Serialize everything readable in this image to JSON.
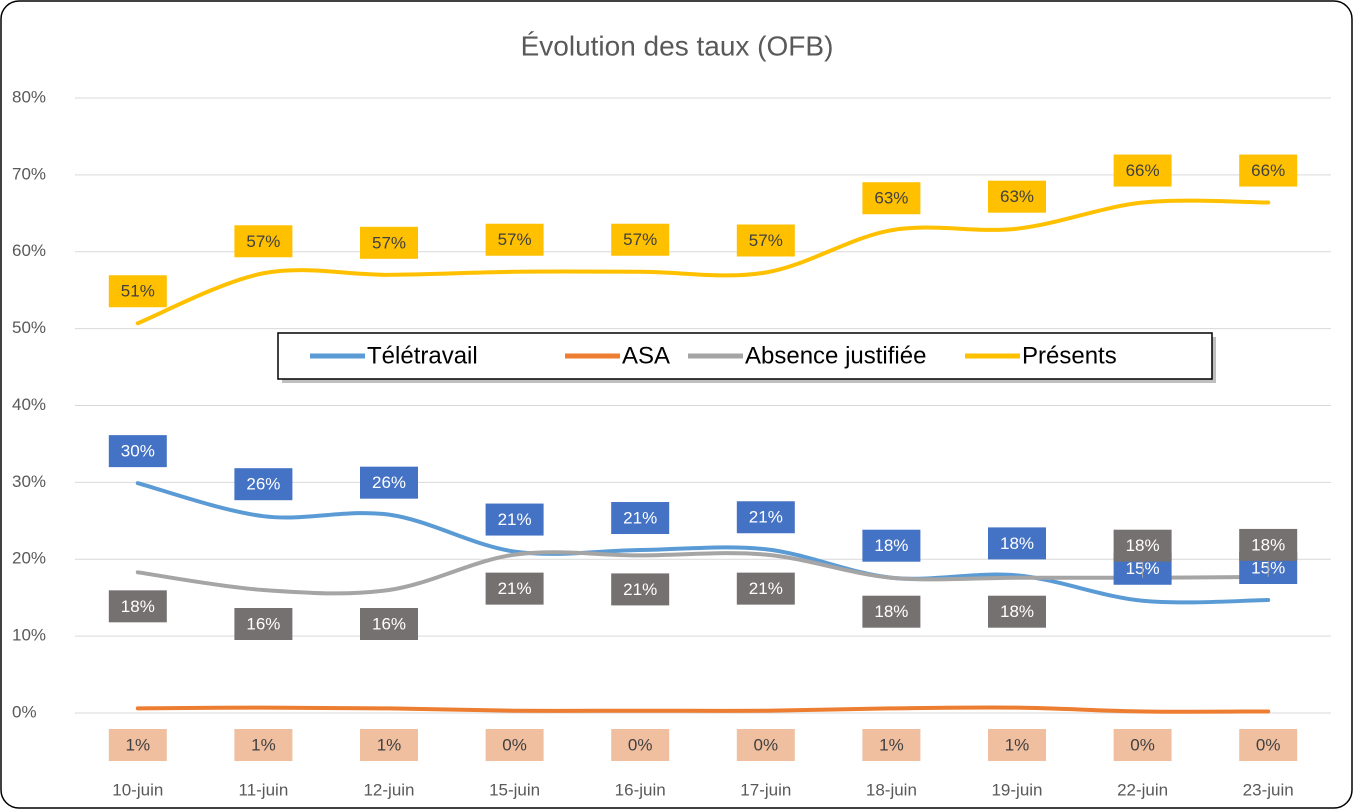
{
  "chart_data": {
    "type": "line",
    "title": "Évolution des taux (OFB)",
    "categories": [
      "10-juin",
      "11-juin",
      "12-juin",
      "15-juin",
      "16-juin",
      "17-juin",
      "18-juin",
      "19-juin",
      "22-juin",
      "23-juin"
    ],
    "ylim": [
      0,
      80
    ],
    "yticks": [
      {
        "value": 0,
        "label": "0%"
      },
      {
        "value": 10,
        "label": "10%"
      },
      {
        "value": 20,
        "label": "20%"
      },
      {
        "value": 30,
        "label": "30%"
      },
      {
        "value": 40,
        "label": "40%"
      },
      {
        "value": 50,
        "label": "50%"
      },
      {
        "value": 60,
        "label": "60%"
      },
      {
        "value": 70,
        "label": "70%"
      },
      {
        "value": 80,
        "label": "80%"
      }
    ],
    "grid": true,
    "legend": "center",
    "series": [
      {
        "name": "Télétravail",
        "color": "#5b9bd5",
        "label_color": "#4472c4",
        "values": [
          29.9,
          25.6,
          25.8,
          21.0,
          21.2,
          21.3,
          17.6,
          17.9,
          14.6,
          14.7
        ],
        "value_labels": [
          "30%",
          "26%",
          "26%",
          "21%",
          "21%",
          "21%",
          "18%",
          "18%",
          "15%",
          "15%"
        ]
      },
      {
        "name": "ASA",
        "color": "#ed7d31",
        "label_color": "#f0bfa0",
        "values": [
          0.6,
          0.7,
          0.6,
          0.3,
          0.3,
          0.3,
          0.6,
          0.7,
          0.2,
          0.2
        ],
        "value_labels": [
          "1%",
          "1%",
          "1%",
          "0%",
          "0%",
          "0%",
          "1%",
          "1%",
          "0%",
          "0%"
        ]
      },
      {
        "name": "Absence justifiée",
        "color": "#a5a5a5",
        "label_color": "#767171",
        "values": [
          18.3,
          16.0,
          16.0,
          20.6,
          20.5,
          20.6,
          17.6,
          17.6,
          17.6,
          17.7
        ],
        "value_labels": [
          "18%",
          "16%",
          "16%",
          "21%",
          "21%",
          "21%",
          "18%",
          "18%",
          "18%",
          "18%"
        ]
      },
      {
        "name": "Présents",
        "color": "#ffc000",
        "label_color": "#ffc000",
        "values": [
          50.7,
          57.2,
          57.0,
          57.4,
          57.4,
          57.3,
          62.8,
          63.0,
          66.4,
          66.4
        ],
        "value_labels": [
          "51%",
          "57%",
          "57%",
          "57%",
          "57%",
          "57%",
          "63%",
          "63%",
          "66%",
          "66%"
        ]
      }
    ]
  }
}
